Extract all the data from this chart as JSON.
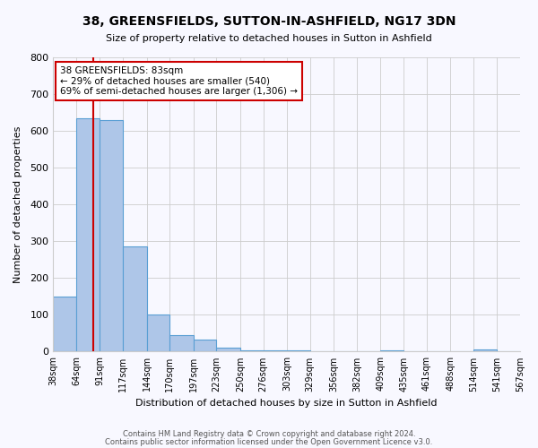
{
  "title": "38, GREENSFIELDS, SUTTON-IN-ASHFIELD, NG17 3DN",
  "subtitle": "Size of property relative to detached houses in Sutton in Ashfield",
  "xlabel": "Distribution of detached houses by size in Sutton in Ashfield",
  "ylabel": "Number of detached properties",
  "bar_color": "#aec6e8",
  "bar_edge_color": "#5a9fd4",
  "annotation_box_text": "38 GREENSFIELDS: 83sqm\n← 29% of detached houses are smaller (540)\n69% of semi-detached houses are larger (1,306) →",
  "annotation_box_color": "#ffffff",
  "annotation_box_edge_color": "#cc0000",
  "vline_x": 83,
  "vline_color": "#cc0000",
  "footer_line1": "Contains HM Land Registry data © Crown copyright and database right 2024.",
  "footer_line2": "Contains public sector information licensed under the Open Government Licence v3.0.",
  "ylim": [
    0,
    800
  ],
  "yticks": [
    0,
    100,
    200,
    300,
    400,
    500,
    600,
    700,
    800
  ],
  "bin_edges": [
    38,
    64,
    91,
    117,
    144,
    170,
    197,
    223,
    250,
    276,
    303,
    329,
    356,
    382,
    409,
    435,
    461,
    488,
    514,
    541,
    567
  ],
  "bin_labels": [
    "38sqm",
    "64sqm",
    "91sqm",
    "117sqm",
    "144sqm",
    "170sqm",
    "197sqm",
    "223sqm",
    "250sqm",
    "276sqm",
    "303sqm",
    "329sqm",
    "356sqm",
    "382sqm",
    "409sqm",
    "435sqm",
    "461sqm",
    "488sqm",
    "514sqm",
    "541sqm",
    "567sqm"
  ],
  "bar_heights": [
    150,
    635,
    630,
    287,
    100,
    45,
    32,
    12,
    4,
    4,
    4,
    0,
    0,
    0,
    4,
    0,
    0,
    0,
    7,
    0
  ],
  "background_color": "#f8f8ff",
  "grid_color": "#cccccc"
}
